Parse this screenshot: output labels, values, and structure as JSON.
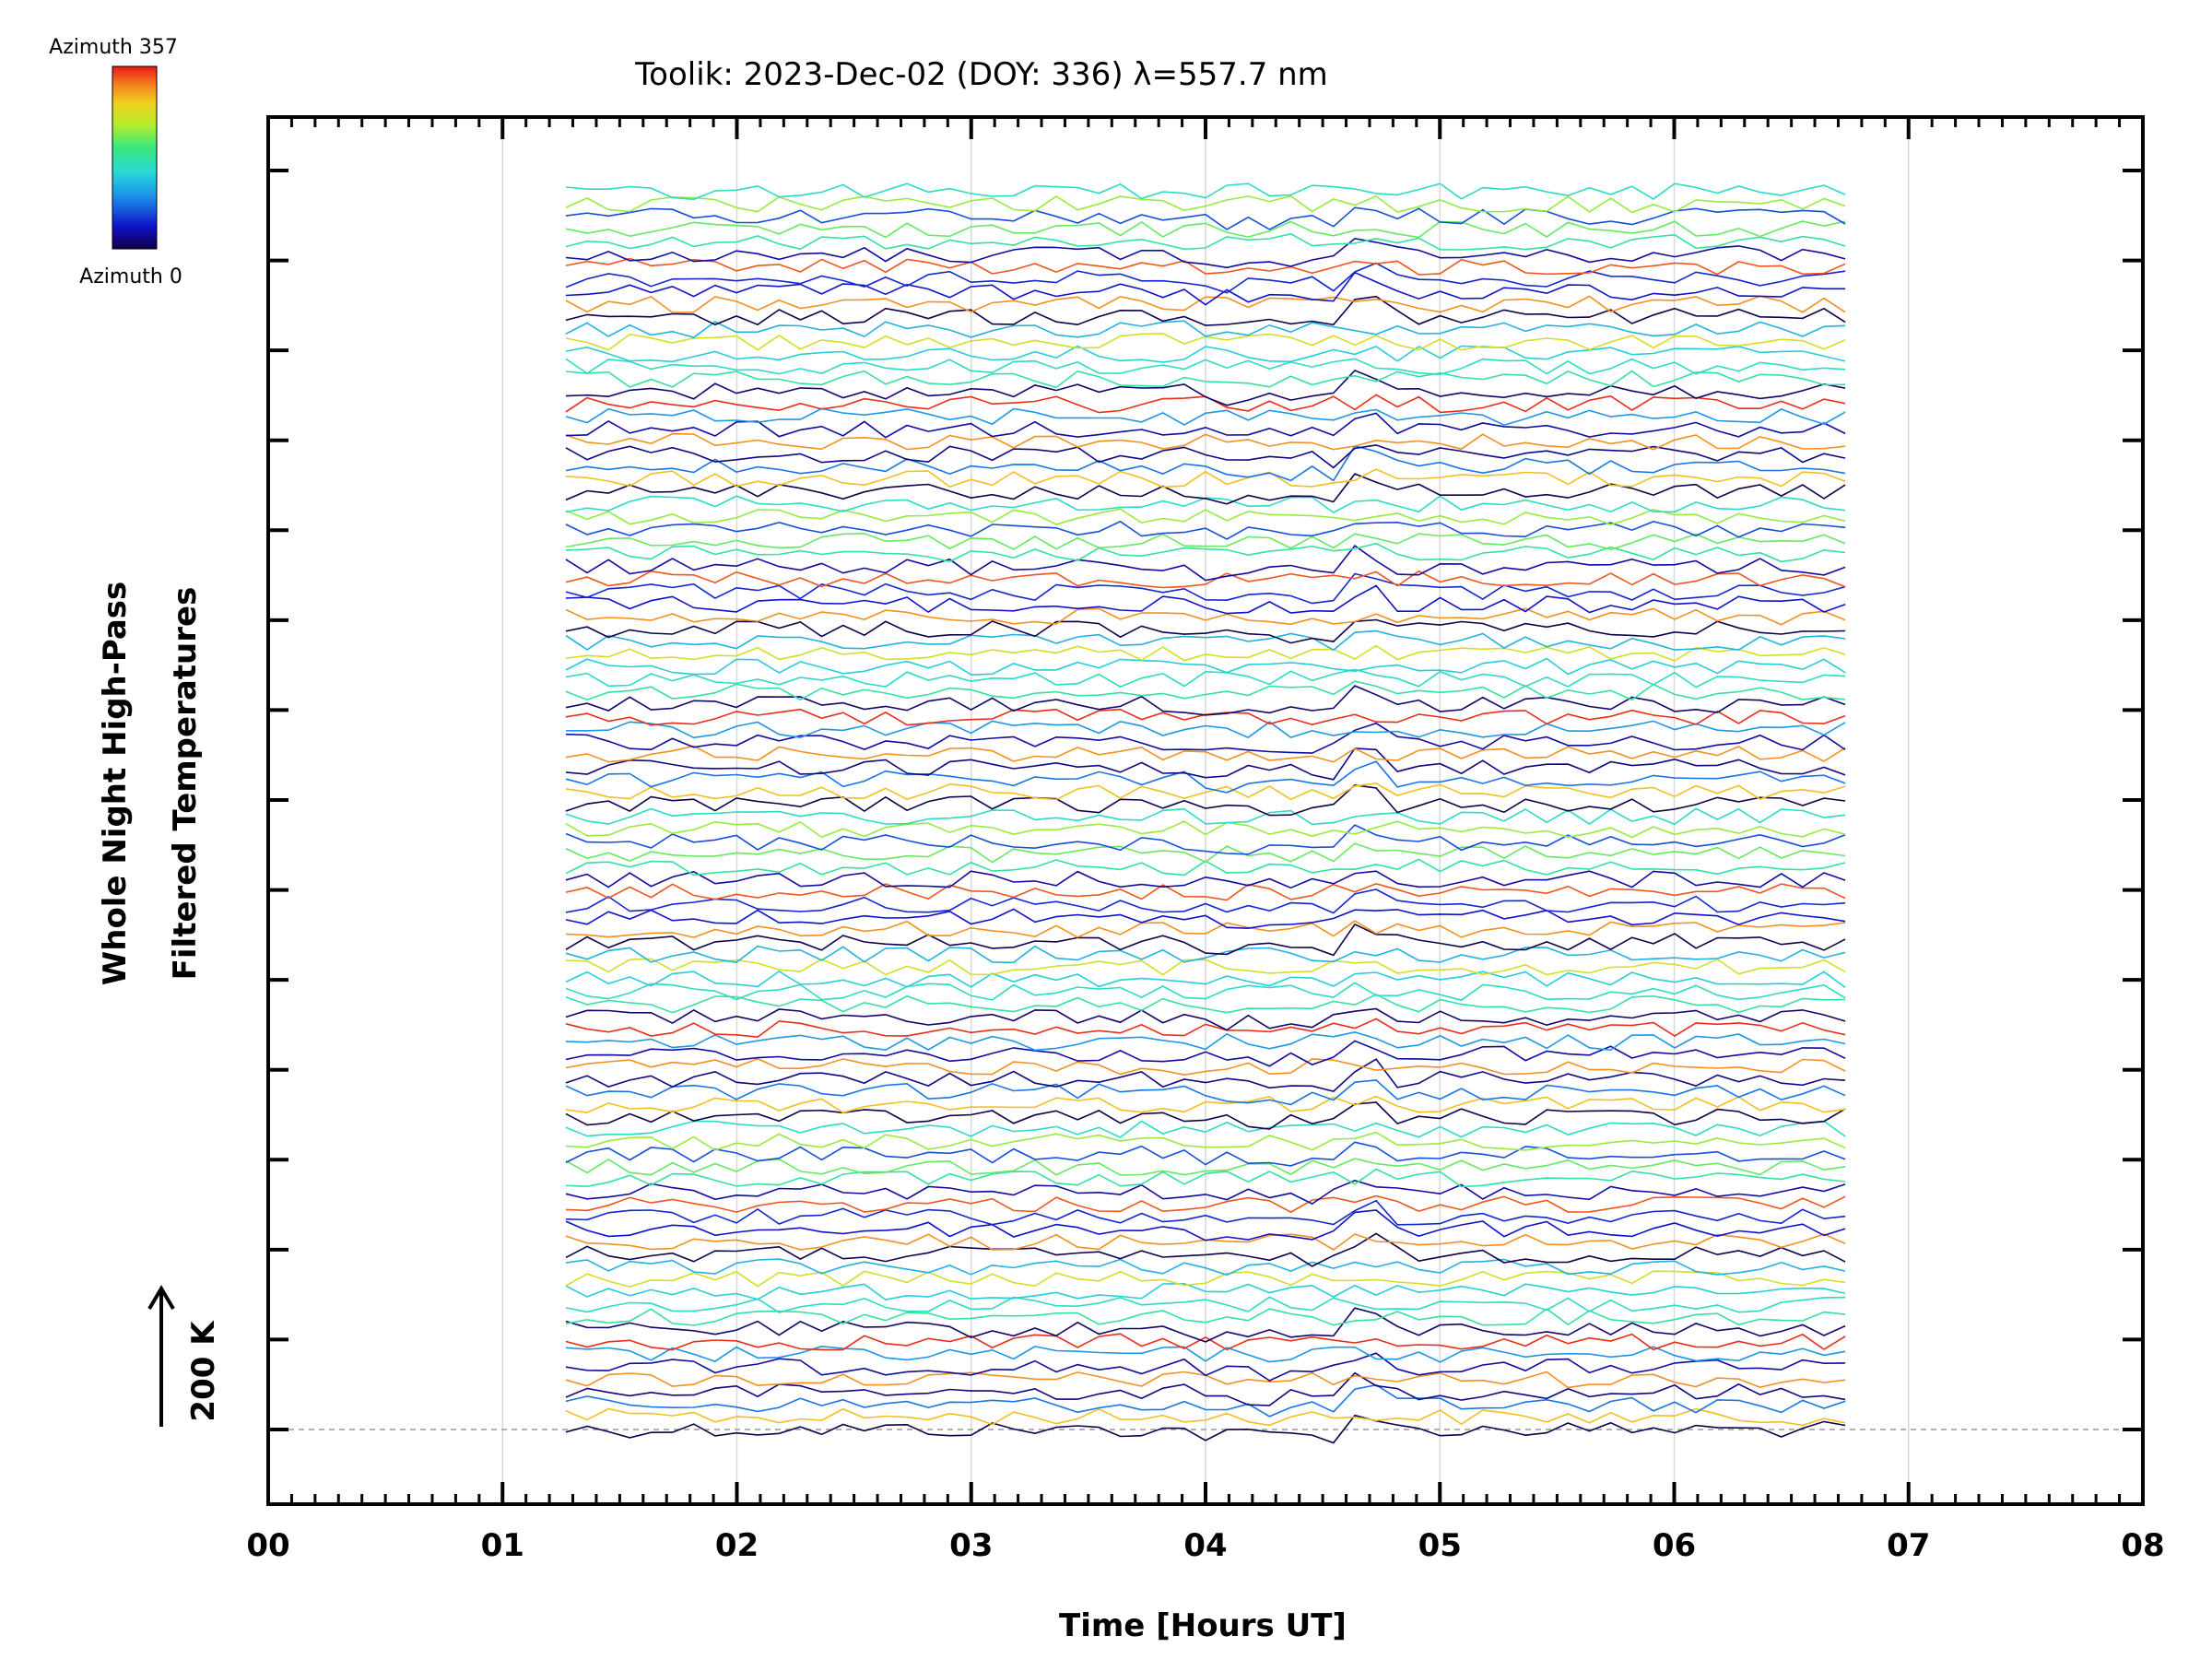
{
  "chart_data": {
    "type": "line",
    "title": "Toolik: 2023-Dec-02 (DOY: 336) λ=557.7 nm",
    "xlabel": "Time [Hours UT]",
    "ylabel_line1": "Whole Night High-Pass",
    "ylabel_line2": "Filtered Temperatures",
    "xlim": [
      0,
      8
    ],
    "x_tick_labels": [
      "00",
      "01",
      "02",
      "03",
      "04",
      "05",
      "06",
      "07",
      "08"
    ],
    "data_time_range": [
      1.27,
      6.73
    ],
    "n_y_major_ticks": 15,
    "scale_bar_label": "200 K",
    "colorbar": {
      "top_label": "Azimuth 357",
      "bottom_label": "Azimuth 0",
      "colormap": "rainbow"
    },
    "grid": "vertical at each hour",
    "baseline": "dashed at lowest trace",
    "n_traces": 100,
    "trace_spacing_K": 17.5,
    "colors": {
      "axis": "#000000",
      "grid": "#d9d9d9",
      "baseline": "#999999"
    }
  }
}
